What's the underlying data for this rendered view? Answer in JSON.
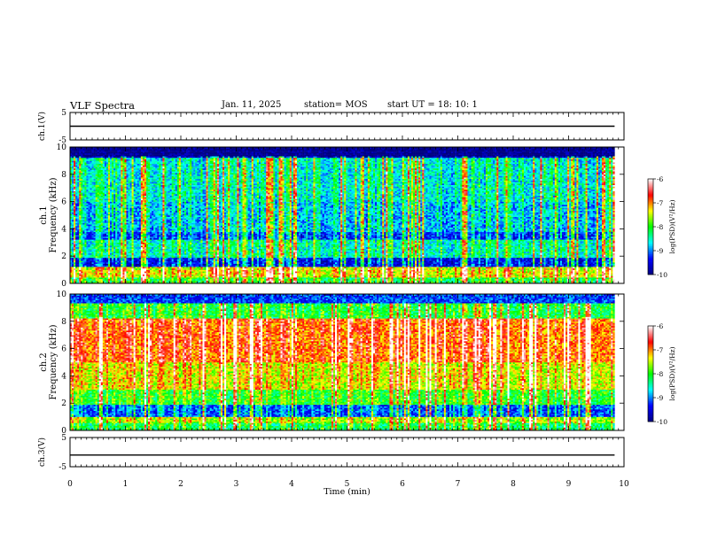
{
  "header": {
    "title": "VLF Spectra",
    "date": "Jan. 11, 2025",
    "station": "station= MOS",
    "start": "start  UT  =   18: 10: 1"
  },
  "colors": {
    "colormap": [
      "#000080",
      "#0000ff",
      "#00ffff",
      "#00ff00",
      "#ffff00",
      "#ff0000",
      "#ffffff"
    ]
  },
  "chart_data": [
    {
      "type": "line",
      "panel": "ch.1",
      "ylabel": "ch.1(V)",
      "ylim": [
        -5,
        5
      ],
      "yticks": [
        -5,
        5
      ],
      "x": [
        0,
        10
      ],
      "values": [
        0,
        0
      ]
    },
    {
      "type": "heatmap",
      "panel": "ch.1",
      "ylabel_top": "ch.1",
      "ylabel": "Frequency (kHz)",
      "ylim": [
        0,
        10
      ],
      "yticks": [
        0,
        2,
        4,
        6,
        8,
        10
      ],
      "xlim": [
        0,
        9.83
      ],
      "colorbar": {
        "label": "log(PSD)(V²/Hz)",
        "ticks": [
          -10,
          -9,
          -8,
          -7,
          -6
        ],
        "range": [
          -10,
          -6
        ]
      },
      "bands": [
        {
          "from": 0,
          "to": 0.5,
          "level": -8.3
        },
        {
          "from": 0.5,
          "to": 1.2,
          "level": -7.6
        },
        {
          "from": 1.2,
          "to": 1.9,
          "level": -9.6
        },
        {
          "from": 1.9,
          "to": 3.2,
          "level": -8.7
        },
        {
          "from": 3.2,
          "to": 3.8,
          "level": -9.4
        },
        {
          "from": 3.8,
          "to": 6.0,
          "level": -9.0
        },
        {
          "from": 6.0,
          "to": 9.2,
          "level": -8.8
        },
        {
          "from": 9.2,
          "to": 10,
          "level": -10
        }
      ]
    },
    {
      "type": "heatmap",
      "panel": "ch.2",
      "ylabel_top": "ch.2",
      "ylabel": "Frequency (kHz)",
      "ylim": [
        0,
        10
      ],
      "yticks": [
        0,
        2,
        4,
        6,
        8,
        10
      ],
      "xlim": [
        0,
        9.83
      ],
      "colorbar": {
        "label": "log(PSD)(V²/Hz)",
        "ticks": [
          -10,
          -9,
          -8,
          -7,
          -6
        ],
        "range": [
          -10,
          -6
        ]
      },
      "bands": [
        {
          "from": 0,
          "to": 0.6,
          "level": -8.4
        },
        {
          "from": 0.6,
          "to": 1.0,
          "level": -7.8
        },
        {
          "from": 1.0,
          "to": 1.9,
          "level": -9.3
        },
        {
          "from": 1.9,
          "to": 3.0,
          "level": -8.2
        },
        {
          "from": 3.0,
          "to": 5.0,
          "level": -7.6
        },
        {
          "from": 5.0,
          "to": 8.2,
          "level": -7.1
        },
        {
          "from": 8.2,
          "to": 9.3,
          "level": -8.3
        },
        {
          "from": 9.3,
          "to": 10,
          "level": -9.2
        }
      ]
    },
    {
      "type": "line",
      "panel": "ch.3",
      "ylabel": "ch.3(V)",
      "ylim": [
        -5,
        5
      ],
      "yticks": [
        -5,
        5
      ],
      "x": [
        0,
        10
      ],
      "values": [
        -1,
        -1
      ]
    }
  ],
  "xaxis": {
    "label": "Time (min)",
    "range": [
      0,
      10
    ],
    "ticks": [
      "0",
      "1",
      "2",
      "3",
      "4",
      "5",
      "6",
      "7",
      "8",
      "9",
      "10"
    ]
  }
}
